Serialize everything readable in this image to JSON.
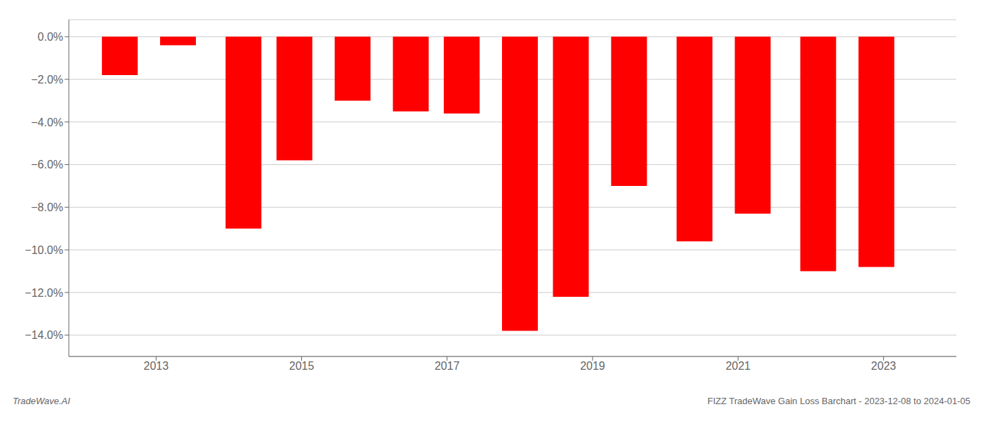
{
  "chart_data": {
    "type": "bar",
    "x": [
      2012.5,
      2013.3,
      2014.2,
      2014.9,
      2015.7,
      2016.5,
      2017.2,
      2018.0,
      2018.7,
      2019.5,
      2020.4,
      2021.2,
      2022.1,
      2022.9
    ],
    "values": [
      -1.8,
      -0.4,
      -9.0,
      -5.8,
      -3.0,
      -3.5,
      -3.6,
      -13.8,
      -12.2,
      -7.0,
      -9.6,
      -8.3,
      -11.0,
      -10.8
    ],
    "color": "#ff0000",
    "xlim": [
      2011.8,
      2024.0
    ],
    "xticks": [
      2013,
      2015,
      2017,
      2019,
      2021,
      2023
    ],
    "ylim": [
      -15.0,
      0.8
    ],
    "yticks": [
      {
        "value": 0.0,
        "label": "0.0%"
      },
      {
        "value": -2.0,
        "label": "−2.0%"
      },
      {
        "value": -4.0,
        "label": "−4.0%"
      },
      {
        "value": -6.0,
        "label": "−6.0%"
      },
      {
        "value": -8.0,
        "label": "−8.0%"
      },
      {
        "value": -10.0,
        "label": "−10.0%"
      },
      {
        "value": -12.0,
        "label": "−12.0%"
      },
      {
        "value": -14.0,
        "label": "−14.0%"
      }
    ],
    "grid": true,
    "annotations": [
      "TradeWave.AI",
      "FIZZ TradeWave Gain Loss Barchart - 2023-12-08 to 2024-01-05"
    ]
  }
}
